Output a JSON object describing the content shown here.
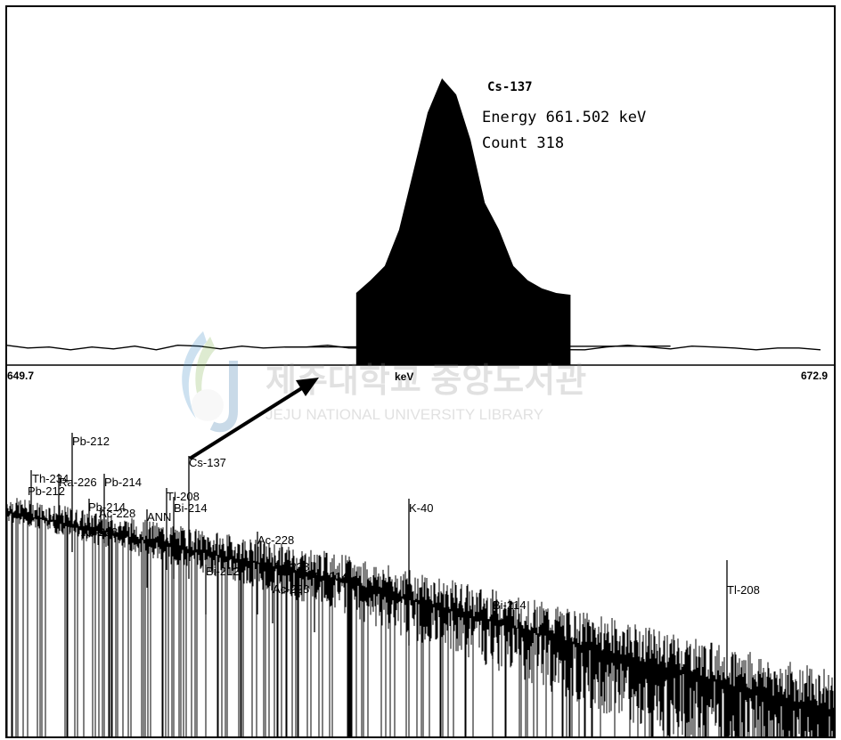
{
  "chart_data": [
    {
      "type": "line",
      "panel": "zoomed peak",
      "peak": {
        "nuclide": "Cs-137",
        "energy_text": "Energy 661.502 keV",
        "count_text": "Count 318",
        "energy_keV": 661.502,
        "count": 318
      },
      "xlabel": "keV",
      "xlim": [
        649.7,
        672.9
      ],
      "xlim_labels": [
        "649.7",
        "672.9"
      ],
      "x": [
        649.7,
        650.3,
        650.9,
        651.5,
        652.1,
        652.7,
        653.3,
        653.9,
        654.5,
        655.1,
        655.7,
        656.3,
        656.9,
        657.5,
        658.1,
        658.7,
        659.3,
        659.9,
        660.3,
        660.7,
        661.1,
        661.5,
        661.9,
        662.3,
        662.7,
        663.1,
        663.5,
        663.9,
        664.3,
        664.7,
        665.3,
        665.9,
        666.5,
        667.1,
        667.7,
        668.3,
        668.9,
        669.5,
        670.1,
        670.7,
        671.3,
        671.9,
        672.5
      ],
      "y": [
        22,
        19,
        20,
        17,
        20,
        18,
        21,
        17,
        22,
        21,
        18,
        21,
        19,
        20,
        20,
        22,
        19,
        22,
        19,
        25,
        13,
        15,
        14,
        16,
        18,
        22,
        20,
        22,
        19,
        21,
        22,
        17,
        20,
        22,
        20,
        18,
        21,
        20,
        19,
        17,
        19,
        19,
        17
      ],
      "peak_region": {
        "x": [
          659.5,
          659.9,
          660.3,
          660.7,
          661.1,
          661.5,
          661.9,
          662.3,
          662.7,
          663.1,
          663.5,
          663.9,
          664.3,
          664.7,
          665.1,
          665.5
        ],
        "y": [
          80,
          94,
          110,
          150,
          215,
          280,
          318,
          300,
          250,
          180,
          150,
          110,
          94,
          85,
          80,
          78
        ]
      }
    },
    {
      "type": "line",
      "panel": "full spectrum",
      "peak_labels": [
        "Pb-212",
        "Cs-137",
        "Th-234",
        "Ra-226",
        "Pb-214",
        "Pb-212",
        "Pb-214",
        "Ac-228",
        "Ac-228",
        "Tl-208",
        "Bi-214",
        "ANN",
        "K-40",
        "Ac-228",
        "Ac-228",
        "Ac-228",
        "Bi-214",
        "Bi-212",
        "Bi-214",
        "Tl-208"
      ]
    }
  ],
  "overlay": {
    "watermark_korean": "제주대학교 중앙도서관",
    "watermark_english": "JEJU NATIONAL UNIVERSITY LIBRARY"
  }
}
